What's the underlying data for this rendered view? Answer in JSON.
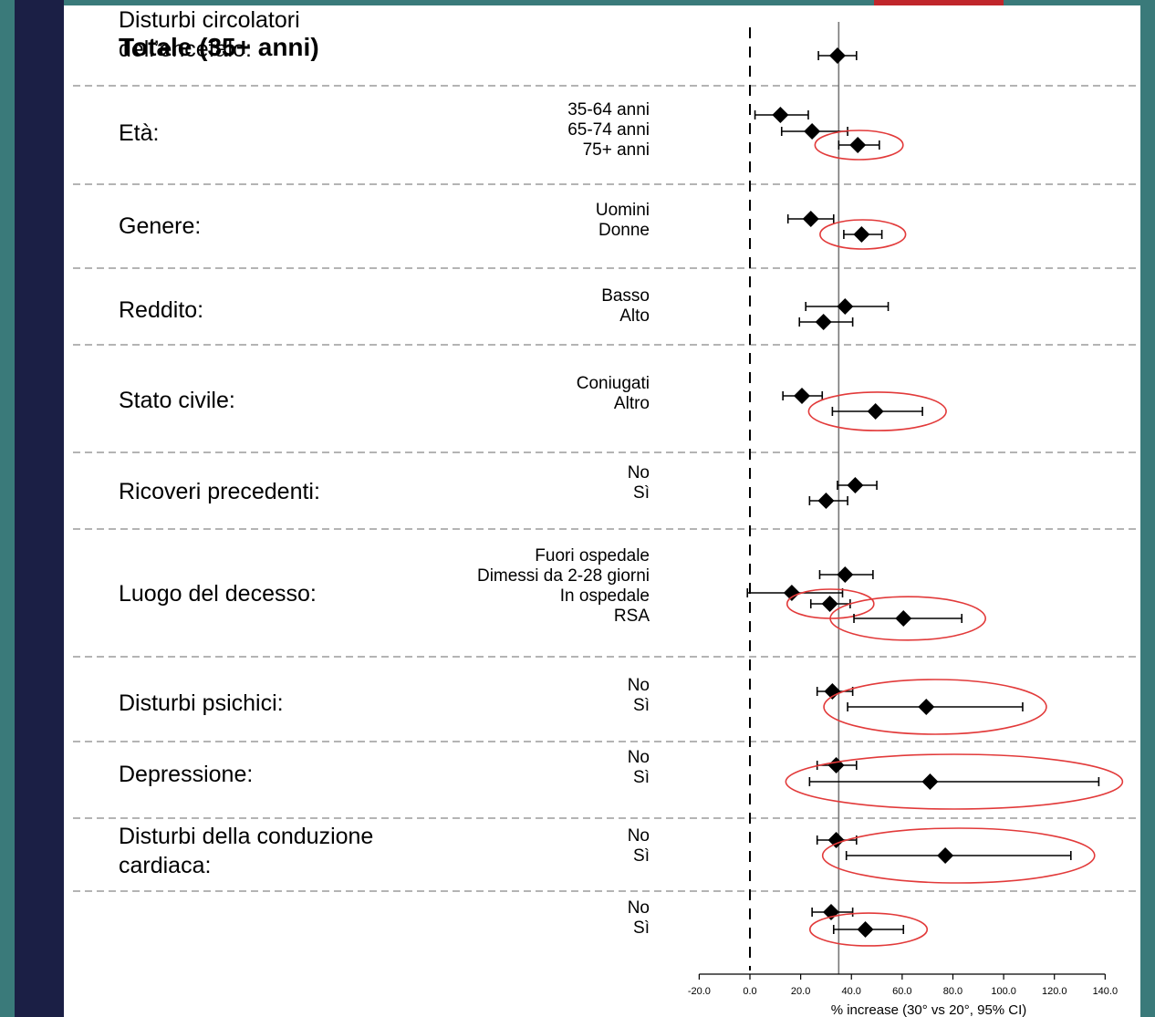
{
  "colors": {
    "background": "#3a7a7a",
    "navy": "#1b1f45",
    "accent_red": "#c0262b",
    "highlight": "#e23a3a"
  },
  "chart_data": {
    "type": "forest",
    "xlabel": "% increase (30° vs 20°, 95% CI)",
    "xlim": [
      -20,
      140
    ],
    "x_ticks": [
      "-20.0",
      "0.0",
      "20.0",
      "40.0",
      "60.0",
      "80.0",
      "100.0",
      "120.0",
      "140.0"
    ],
    "reference_lines": {
      "dashed_at": 0,
      "solid_at": 35
    },
    "groups": [
      {
        "label": "Totale (35+ anni)",
        "title": true,
        "rows": [
          {
            "label": "",
            "est": 34.5,
            "lo": 27,
            "hi": 42,
            "highlight": false
          }
        ]
      },
      {
        "label": "Età:",
        "rows": [
          {
            "label": "35-64 anni",
            "est": 12,
            "lo": 2,
            "hi": 23,
            "highlight": false
          },
          {
            "label": "65-74 anni",
            "est": 24.5,
            "lo": 12.5,
            "hi": 38.5,
            "highlight": false
          },
          {
            "label": "75+ anni",
            "est": 42.5,
            "lo": 35,
            "hi": 51,
            "highlight": true
          }
        ]
      },
      {
        "label": "Genere:",
        "rows": [
          {
            "label": "Uomini",
            "est": 24,
            "lo": 15,
            "hi": 33,
            "highlight": false
          },
          {
            "label": "Donne",
            "est": 44,
            "lo": 37,
            "hi": 52,
            "highlight": true
          }
        ]
      },
      {
        "label": "Reddito:",
        "rows": [
          {
            "label": "Basso",
            "est": 37.5,
            "lo": 22,
            "hi": 54.5,
            "highlight": false
          },
          {
            "label": "Alto",
            "est": 29,
            "lo": 19.5,
            "hi": 40.5,
            "highlight": false
          }
        ]
      },
      {
        "label": "Stato civile:",
        "rows": [
          {
            "label": "Coniugati",
            "est": 20.5,
            "lo": 13,
            "hi": 28.5,
            "highlight": false
          },
          {
            "label": "Altro",
            "est": 49.5,
            "lo": 32.5,
            "hi": 68,
            "highlight": true
          }
        ]
      },
      {
        "label": "Ricoveri precedenti:",
        "rows": [
          {
            "label": "No",
            "est": 41.5,
            "lo": 34.5,
            "hi": 50,
            "highlight": false
          },
          {
            "label": "Sì",
            "est": 30,
            "lo": 23.5,
            "hi": 38.5,
            "highlight": false
          }
        ]
      },
      {
        "label": "Luogo del decesso:",
        "rows": [
          {
            "label": "Fuori ospedale",
            "est": 37.5,
            "lo": 27.5,
            "hi": 48.5,
            "highlight": false
          },
          {
            "label": "Dimessi da 2-28 giorni",
            "est": 16.5,
            "lo": -1,
            "hi": 36.5,
            "highlight": false
          },
          {
            "label": "In ospedale",
            "est": 31.5,
            "lo": 24,
            "hi": 39.5,
            "highlight": true
          },
          {
            "label": "RSA",
            "est": 60.5,
            "lo": 41,
            "hi": 83.5,
            "highlight": true
          }
        ]
      },
      {
        "label": "Disturbi psichici:",
        "rows": [
          {
            "label": "No",
            "est": 32.5,
            "lo": 26.5,
            "hi": 40.5,
            "highlight": false
          },
          {
            "label": "Sì",
            "est": 69.5,
            "lo": 38.5,
            "hi": 107.5,
            "highlight": true
          }
        ]
      },
      {
        "label": "Depressione:",
        "rows": [
          {
            "label": "No",
            "est": 34,
            "lo": 26.5,
            "hi": 42,
            "highlight": false
          },
          {
            "label": "Sì",
            "est": 71,
            "lo": 23.5,
            "hi": 137.5,
            "highlight": true
          }
        ]
      },
      {
        "label": "Disturbi della conduzione\ncardiaca:",
        "rows": [
          {
            "label": "No",
            "est": 34,
            "lo": 26.5,
            "hi": 42,
            "highlight": false
          },
          {
            "label": "Sì",
            "est": 77,
            "lo": 38,
            "hi": 126.5,
            "highlight": true
          }
        ]
      },
      {
        "label": "Disturbi circolatori\ndell’encefalo:",
        "rows": [
          {
            "label": "No",
            "est": 32,
            "lo": 24.5,
            "hi": 40.5,
            "highlight": false
          },
          {
            "label": "Sì",
            "est": 45.5,
            "lo": 33,
            "hi": 60.5,
            "highlight": true
          }
        ]
      }
    ]
  }
}
